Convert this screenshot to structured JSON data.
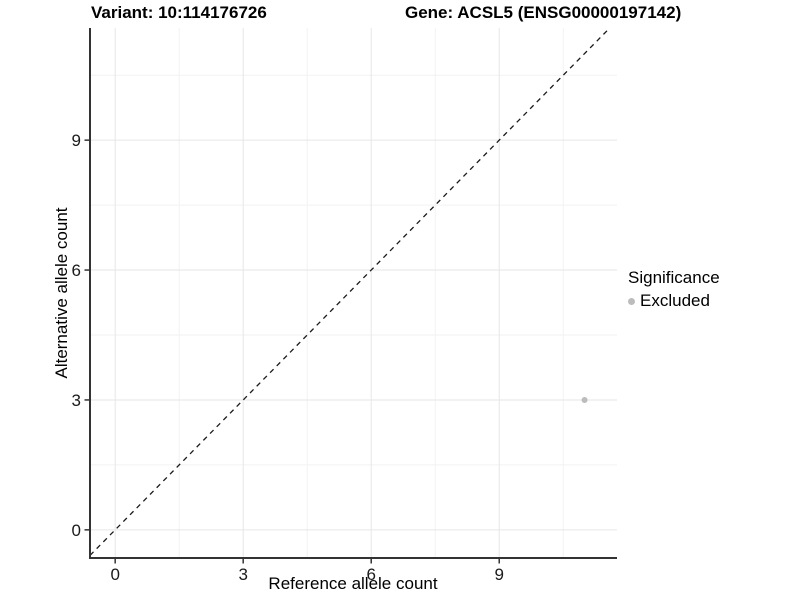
{
  "title": {
    "variant_label": "Variant: 10:114176726",
    "gene_label": "Gene: ACSL5 (ENSG00000197142)"
  },
  "legend": {
    "title": "Significance",
    "entries": [
      {
        "label": "Excluded",
        "color": "#bcbcbc"
      }
    ]
  },
  "chart_data": {
    "type": "scatter",
    "title": "Variant: 10:114176726  Gene: ACSL5 (ENSG00000197142)",
    "xlabel": "Reference allele count",
    "ylabel": "Alternative allele count",
    "x_axis": {
      "range": [
        -0.59,
        11.76
      ],
      "major_ticks": [
        0,
        3,
        6,
        9
      ],
      "minor_ticks": [
        1.5,
        4.5,
        7.5,
        10.5
      ]
    },
    "y_axis": {
      "range": [
        -0.65,
        11.59
      ],
      "major_ticks": [
        0,
        3,
        6,
        9
      ],
      "minor_ticks": [
        1.5,
        4.5,
        7.5,
        10.5
      ]
    },
    "series": [
      {
        "name": "Excluded",
        "color": "#bcbcbc",
        "points": [
          {
            "x": 11,
            "y": 3
          }
        ]
      }
    ],
    "reference_line": {
      "type": "identity",
      "slope": 1,
      "intercept": 0,
      "style": "dashed",
      "color": "#1a1a1a"
    },
    "grid": true,
    "legend_position": "right",
    "style": {
      "axis_line": "#333333",
      "major_grid": "#e6e6e6",
      "minor_grid": "#f2f2f2",
      "text_color": "#1a1a1a",
      "background": "#ffffff"
    }
  }
}
